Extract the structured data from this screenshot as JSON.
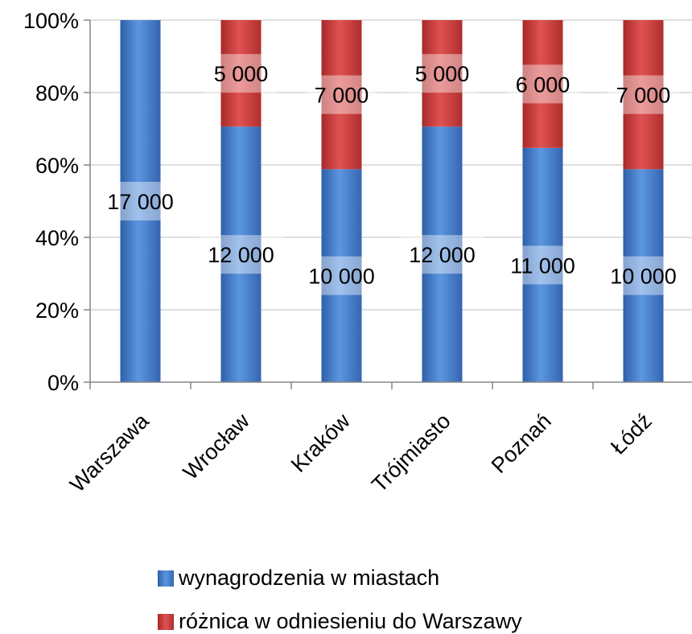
{
  "chart_data": {
    "type": "bar",
    "stacked": true,
    "normalized": true,
    "categories": [
      "Warszawa",
      "Wrocław",
      "Kraków",
      "Trójmiasto",
      "Poznań",
      "Łódź"
    ],
    "series": [
      {
        "name": "wynagrodzenia w miastach",
        "values": [
          17000,
          12000,
          10000,
          12000,
          11000,
          10000
        ],
        "labels": [
          "17 000",
          "12 000",
          "10 000",
          "12 000",
          "11 000",
          "10 000"
        ],
        "color": "#4A86D4"
      },
      {
        "name": "różnica w odniesieniu do Warszawy",
        "values": [
          0,
          5000,
          7000,
          5000,
          6000,
          7000
        ],
        "labels": [
          "",
          "5 000",
          "7 000",
          "5 000",
          "6 000",
          "7 000"
        ],
        "color": "#D03A3A"
      }
    ],
    "y_ticks": [
      "0%",
      "20%",
      "40%",
      "60%",
      "80%",
      "100%"
    ],
    "ylim": [
      0,
      100
    ],
    "grid": true,
    "legend_position": "bottom"
  }
}
